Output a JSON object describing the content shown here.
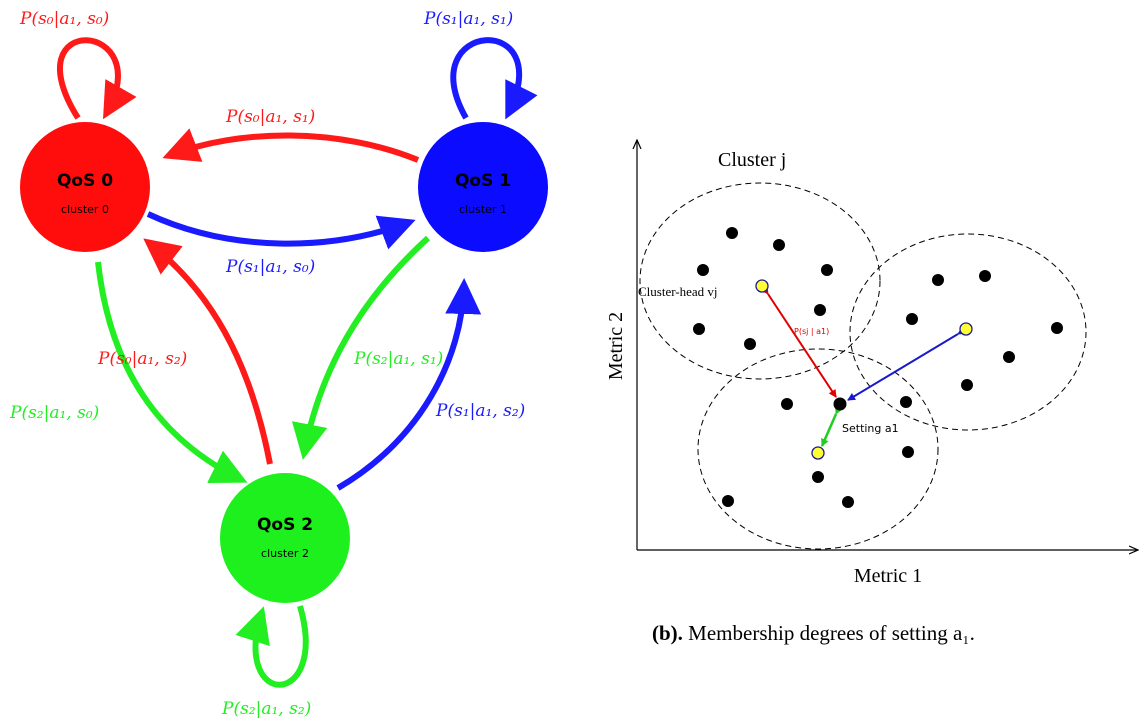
{
  "colors": {
    "red": "#ff1a1a",
    "blue": "#1a1aff",
    "green": "#22ee22",
    "node_red": "#ff0d0d",
    "node_blue": "#0b0bff",
    "node_green": "#1ef01e",
    "yellow": "#ffff33"
  },
  "left": {
    "nodes": [
      {
        "title": "QoS 0",
        "sub": "cluster 0"
      },
      {
        "title": "QoS 1",
        "sub": "cluster 1"
      },
      {
        "title": "QoS 2",
        "sub": "cluster 2"
      }
    ],
    "labels": {
      "p00": "P(s₀|a₁, s₀)",
      "p11": "P(s₁|a₁, s₁)",
      "p01": "P(s₀|a₁, s₁)",
      "p10": "P(s₁|a₁, s₀)",
      "p02": "P(s₀|a₁, s₂)",
      "p20": "P(s₂|a₁, s₀)",
      "p21": "P(s₂|a₁, s₁)",
      "p12": "P(s₁|a₁, s₂)",
      "p22": "P(s₂|a₁, s₂)"
    }
  },
  "right": {
    "cluster_label": "Cluster j",
    "head_label": "Cluster-head vj",
    "edge_label": "P(sj | a1)",
    "setting_label": "Setting a1",
    "x_axis": "Metric 1",
    "y_axis": "Metric 2",
    "caption_bold": "(b).",
    "caption_text": " Membership degrees of setting a₁."
  }
}
